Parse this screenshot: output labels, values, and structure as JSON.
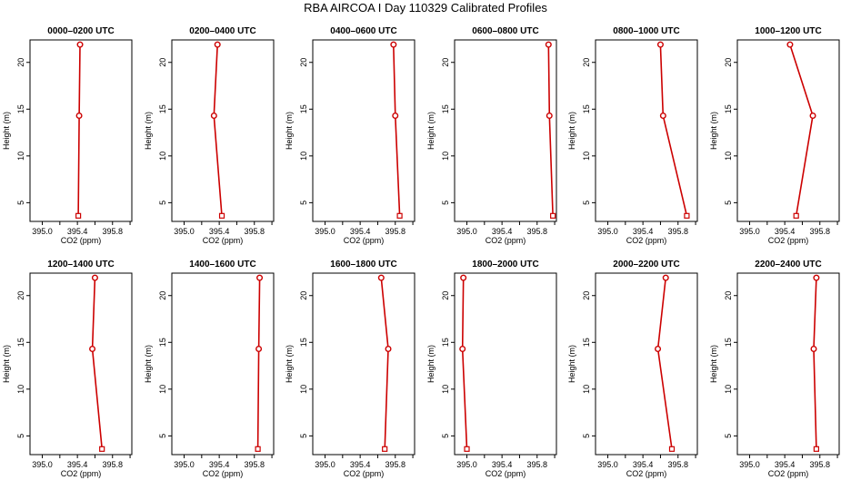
{
  "title": "RBA AIRCOA I  Day 110329  Calibrated Profiles",
  "chart_data": [
    {
      "type": "line",
      "title": "0000–0200 UTC",
      "xlabel": "CO2 (ppm)",
      "ylabel": "Height (m)",
      "xticks": [
        "395.0",
        "395.4",
        "395.8"
      ],
      "yticks": [
        "5",
        "10",
        "15",
        "20"
      ],
      "xlim": [
        394.86,
        396.02
      ],
      "ylim": [
        3.0,
        22.4
      ],
      "x": [
        395.43,
        395.42,
        395.41
      ],
      "y": [
        21.9,
        14.3,
        3.6
      ],
      "color": "#cc0000"
    },
    {
      "type": "line",
      "title": "0200–0400 UTC",
      "xlabel": "CO2 (ppm)",
      "ylabel": "Height (m)",
      "xticks": [
        "395.0",
        "395.4",
        "395.8"
      ],
      "yticks": [
        "5",
        "10",
        "15",
        "20"
      ],
      "xlim": [
        394.86,
        396.02
      ],
      "ylim": [
        3.0,
        22.4
      ],
      "x": [
        395.38,
        395.34,
        395.43
      ],
      "y": [
        21.9,
        14.3,
        3.6
      ],
      "color": "#cc0000"
    },
    {
      "type": "line",
      "title": "0400–0600 UTC",
      "xlabel": "CO2 (ppm)",
      "ylabel": "Height (m)",
      "xticks": [
        "395.0",
        "395.4",
        "395.8"
      ],
      "yticks": [
        "5",
        "10",
        "15",
        "20"
      ],
      "xlim": [
        394.86,
        396.02
      ],
      "ylim": [
        3.0,
        22.4
      ],
      "x": [
        395.78,
        395.8,
        395.85
      ],
      "y": [
        21.9,
        14.3,
        3.6
      ],
      "color": "#cc0000"
    },
    {
      "type": "line",
      "title": "0600–0800 UTC",
      "xlabel": "CO2 (ppm)",
      "ylabel": "Height (m)",
      "xticks": [
        "395.0",
        "395.4",
        "395.8"
      ],
      "yticks": [
        "5",
        "10",
        "15",
        "20"
      ],
      "xlim": [
        394.86,
        396.02
      ],
      "ylim": [
        3.0,
        22.4
      ],
      "x": [
        395.93,
        395.94,
        395.98
      ],
      "y": [
        21.9,
        14.3,
        3.6
      ],
      "color": "#cc0000"
    },
    {
      "type": "line",
      "title": "0800–1000 UTC",
      "xlabel": "CO2 (ppm)",
      "ylabel": "Height (m)",
      "xticks": [
        "395.0",
        "395.4",
        "395.8"
      ],
      "yticks": [
        "5",
        "10",
        "15",
        "20"
      ],
      "xlim": [
        394.86,
        396.02
      ],
      "ylim": [
        3.0,
        22.4
      ],
      "x": [
        395.6,
        395.63,
        395.9
      ],
      "y": [
        21.9,
        14.3,
        3.6
      ],
      "color": "#cc0000"
    },
    {
      "type": "line",
      "title": "1000–1200 UTC",
      "xlabel": "CO2 (ppm)",
      "ylabel": "Height (m)",
      "xticks": [
        "395.0",
        "395.4",
        "395.8"
      ],
      "yticks": [
        "5",
        "10",
        "15",
        "20"
      ],
      "xlim": [
        394.86,
        396.02
      ],
      "ylim": [
        3.0,
        22.4
      ],
      "x": [
        395.46,
        395.72,
        395.53
      ],
      "y": [
        21.9,
        14.3,
        3.6
      ],
      "color": "#cc0000"
    },
    {
      "type": "line",
      "title": "1200–1400 UTC",
      "xlabel": "CO2 (ppm)",
      "ylabel": "Height (m)",
      "xticks": [
        "395.0",
        "395.4",
        "395.8"
      ],
      "yticks": [
        "5",
        "10",
        "15",
        "20"
      ],
      "xlim": [
        394.86,
        396.02
      ],
      "ylim": [
        3.0,
        22.4
      ],
      "x": [
        395.6,
        395.57,
        395.68
      ],
      "y": [
        21.9,
        14.3,
        3.6
      ],
      "color": "#cc0000"
    },
    {
      "type": "line",
      "title": "1400–1600 UTC",
      "xlabel": "CO2 (ppm)",
      "ylabel": "Height (m)",
      "xticks": [
        "395.0",
        "395.4",
        "395.8"
      ],
      "yticks": [
        "5",
        "10",
        "15",
        "20"
      ],
      "xlim": [
        394.86,
        396.02
      ],
      "ylim": [
        3.0,
        22.4
      ],
      "x": [
        395.86,
        395.85,
        395.84
      ],
      "y": [
        21.9,
        14.3,
        3.6
      ],
      "color": "#cc0000"
    },
    {
      "type": "line",
      "title": "1600–1800 UTC",
      "xlabel": "CO2 (ppm)",
      "ylabel": "Height (m)",
      "xticks": [
        "395.0",
        "395.4",
        "395.8"
      ],
      "yticks": [
        "5",
        "10",
        "15",
        "20"
      ],
      "xlim": [
        394.86,
        396.02
      ],
      "ylim": [
        3.0,
        22.4
      ],
      "x": [
        395.64,
        395.72,
        395.68
      ],
      "y": [
        21.9,
        14.3,
        3.6
      ],
      "color": "#cc0000"
    },
    {
      "type": "line",
      "title": "1800–2000 UTC",
      "xlabel": "CO2 (ppm)",
      "ylabel": "Height (m)",
      "xticks": [
        "395.0",
        "395.4",
        "395.8"
      ],
      "yticks": [
        "5",
        "10",
        "15",
        "20"
      ],
      "xlim": [
        394.86,
        396.02
      ],
      "ylim": [
        3.0,
        22.4
      ],
      "x": [
        394.96,
        394.95,
        395.0
      ],
      "y": [
        21.9,
        14.3,
        3.6
      ],
      "color": "#cc0000"
    },
    {
      "type": "line",
      "title": "2000–2200 UTC",
      "xlabel": "CO2 (ppm)",
      "ylabel": "Height (m)",
      "xticks": [
        "395.0",
        "395.4",
        "395.8"
      ],
      "yticks": [
        "5",
        "10",
        "15",
        "20"
      ],
      "xlim": [
        394.86,
        396.02
      ],
      "ylim": [
        3.0,
        22.4
      ],
      "x": [
        395.66,
        395.57,
        395.73
      ],
      "y": [
        21.9,
        14.3,
        3.6
      ],
      "color": "#cc0000"
    },
    {
      "type": "line",
      "title": "2200–2400 UTC",
      "xlabel": "CO2 (ppm)",
      "ylabel": "Height (m)",
      "xticks": [
        "395.0",
        "395.4",
        "395.8"
      ],
      "yticks": [
        "5",
        "10",
        "15",
        "20"
      ],
      "xlim": [
        394.86,
        396.02
      ],
      "ylim": [
        3.0,
        22.4
      ],
      "x": [
        395.76,
        395.73,
        395.76
      ],
      "y": [
        21.9,
        14.3,
        3.6
      ],
      "color": "#cc0000"
    }
  ]
}
